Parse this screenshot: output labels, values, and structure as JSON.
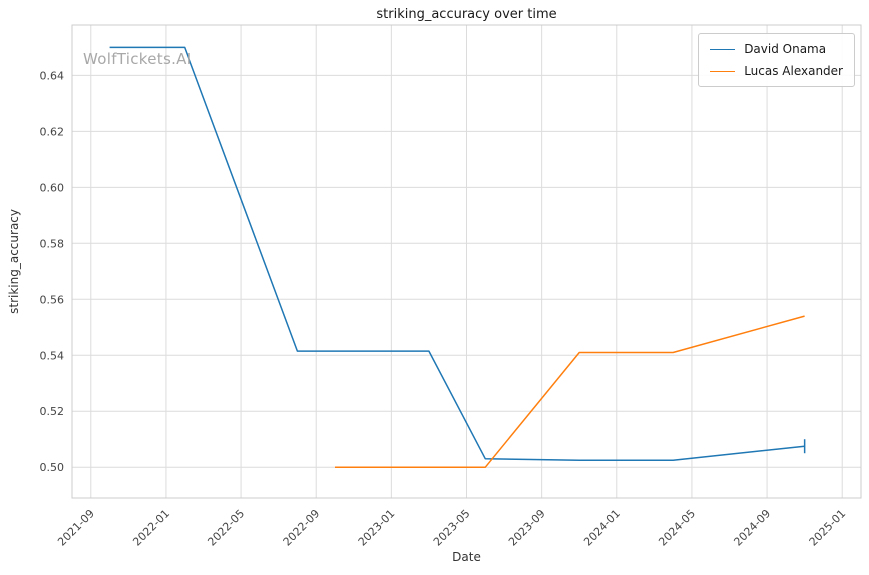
{
  "watermark": "WolfTickets.AI",
  "chart_data": {
    "type": "line",
    "title": "striking_accuracy over time",
    "xlabel": "Date",
    "ylabel": "striking_accuracy",
    "grid": true,
    "legend_position": "upper right",
    "x_ticks": [
      "2021-09",
      "2022-01",
      "2022-05",
      "2022-09",
      "2023-01",
      "2023-05",
      "2023-09",
      "2024-01",
      "2024-05",
      "2024-09",
      "2025-01"
    ],
    "y_ticks": [
      0.5,
      0.52,
      0.54,
      0.56,
      0.58,
      0.6,
      0.62,
      0.64
    ],
    "xlim": [
      "2021-08",
      "2025-02"
    ],
    "ylim": [
      0.489,
      0.658
    ],
    "series": [
      {
        "name": "David Onama",
        "color": "#1f77b4",
        "end_tick": true,
        "points": [
          [
            "2021-10",
            0.65
          ],
          [
            "2022-02",
            0.65
          ],
          [
            "2022-08",
            0.5415
          ],
          [
            "2023-03",
            0.5415
          ],
          [
            "2023-06",
            0.503
          ],
          [
            "2023-11",
            0.5025
          ],
          [
            "2024-04",
            0.5025
          ],
          [
            "2024-11",
            0.5075
          ]
        ]
      },
      {
        "name": "Lucas Alexander",
        "color": "#ff7f0e",
        "end_tick": false,
        "points": [
          [
            "2022-10",
            0.5
          ],
          [
            "2023-06",
            0.5
          ],
          [
            "2023-11",
            0.541
          ],
          [
            "2024-04",
            0.541
          ],
          [
            "2024-11",
            0.554
          ]
        ]
      }
    ]
  }
}
